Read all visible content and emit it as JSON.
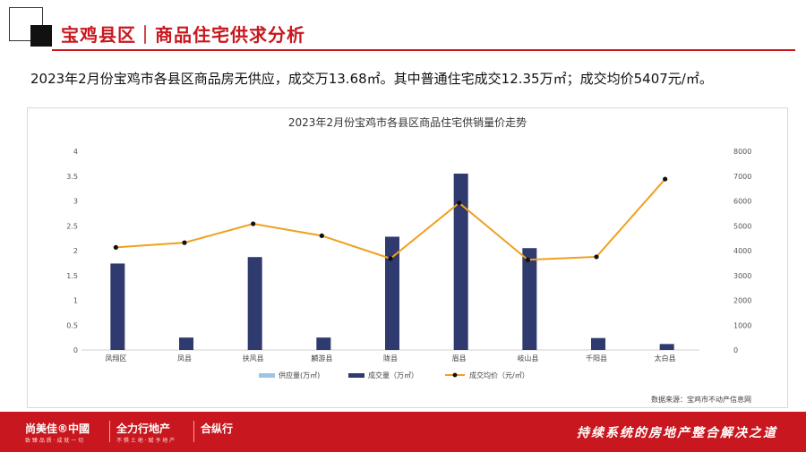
{
  "header": {
    "title": "宝鸡县区｜商品住宅供求分析"
  },
  "summary": "2023年2月份宝鸡市各县区商品房无供应，成交万13.68㎡。其中普通住宅成交12.35万㎡；成交均价5407元/㎡。",
  "chart_data": {
    "type": "bar",
    "title": "2023年2月份宝鸡市各县区商品住宅供销量价走势",
    "categories": [
      "凤翔区",
      "凤县",
      "扶风县",
      "麟游县",
      "陇县",
      "眉县",
      "岐山县",
      "千阳县",
      "太白县"
    ],
    "series": [
      {
        "name": "供应量(万㎡)",
        "type": "bar",
        "axis": "left",
        "color": "#9dc3e6",
        "values": [
          0,
          0,
          0,
          0,
          0,
          0,
          0,
          0,
          0
        ]
      },
      {
        "name": "成交量（万㎡）",
        "type": "bar",
        "axis": "left",
        "color": "#2f3a6e",
        "values": [
          1.74,
          0.25,
          1.87,
          0.25,
          2.28,
          3.55,
          2.05,
          0.24,
          0.12
        ]
      },
      {
        "name": "成交均价（元/㎡）",
        "type": "line",
        "axis": "right",
        "color": "#f0a01e",
        "values": [
          4130,
          4320,
          5080,
          4600,
          3680,
          5920,
          3630,
          3750,
          6880
        ]
      }
    ],
    "y_left": {
      "min": 0,
      "max": 4,
      "ticks": [
        "0",
        "0.5",
        "1",
        "1.5",
        "2",
        "2.5",
        "3",
        "3.5",
        "4"
      ]
    },
    "y_right": {
      "min": 0,
      "max": 8000,
      "ticks": [
        "0",
        "1000",
        "2000",
        "3000",
        "4000",
        "5000",
        "6000",
        "7000",
        "8000"
      ]
    },
    "grid": false,
    "legend": "bottom",
    "source": "数据来源：宝鸡市不动产信息网"
  },
  "footer": {
    "brand1": "尚美佳®中國",
    "brand1_sub": "致 臻 品 质 · 成 就 一 切",
    "brand2": "全力行地产",
    "brand2_sub": "不 惧 土 地 · 赋 予 地 产",
    "brand3": "合纵行",
    "slogan": "持续系统的房地产整合解决之道"
  }
}
